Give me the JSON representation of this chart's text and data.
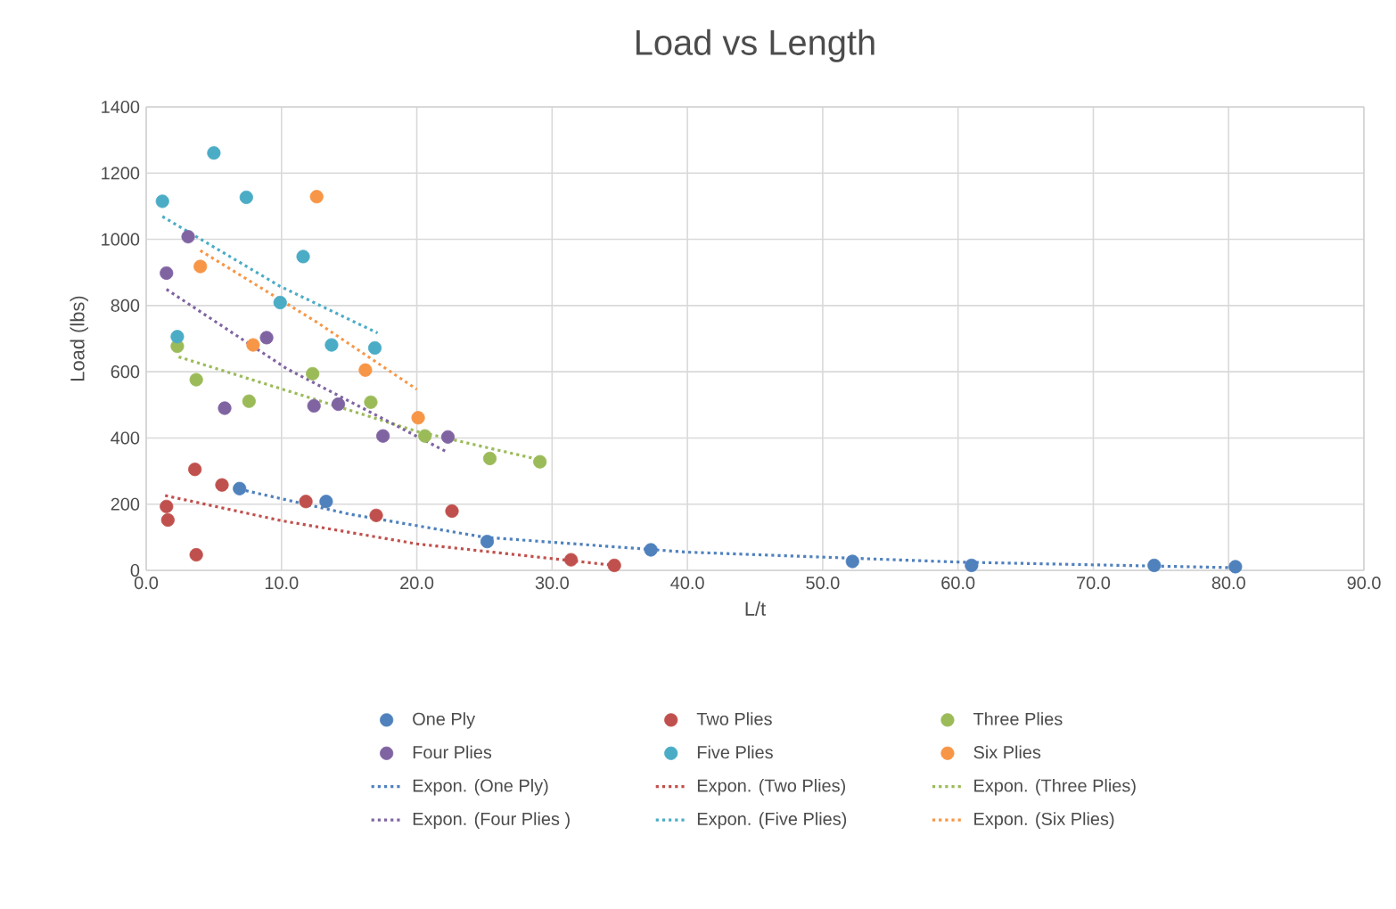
{
  "chart_data": {
    "type": "scatter",
    "title": "Load vs Length",
    "xlabel": "L/t",
    "ylabel": "Load (lbs)",
    "xlim": [
      0,
      90
    ],
    "ylim": [
      0,
      1400
    ],
    "xticks": [
      {
        "value": 0,
        "label": "0.0"
      },
      {
        "value": 10,
        "label": "10.0"
      },
      {
        "value": 20,
        "label": "20.0"
      },
      {
        "value": 30,
        "label": "30.0"
      },
      {
        "value": 40,
        "label": "40.0"
      },
      {
        "value": 50,
        "label": "50.0"
      },
      {
        "value": 60,
        "label": "60.0"
      },
      {
        "value": 70,
        "label": "70.0"
      },
      {
        "value": 80,
        "label": "80.0"
      },
      {
        "value": 90,
        "label": "90.0"
      }
    ],
    "yticks": [
      0,
      200,
      400,
      600,
      800,
      1000,
      1200,
      1400
    ],
    "grid": true,
    "legend": "bottom",
    "marker": "circle",
    "series": [
      {
        "name": "One Ply",
        "color": "#4f81bd",
        "x": [
          6.9,
          13.3,
          25.2,
          37.3,
          52.2,
          61.0,
          74.5,
          80.5
        ],
        "values": [
          247,
          208,
          87,
          62,
          27,
          15,
          15,
          11
        ]
      },
      {
        "name": "Two Plies",
        "color": "#c0504d",
        "x": [
          1.5,
          1.6,
          3.6,
          3.7,
          5.6,
          11.8,
          17.0,
          22.6,
          31.4,
          34.6
        ],
        "values": [
          193,
          152,
          305,
          47,
          258,
          208,
          166,
          179,
          32,
          15
        ]
      },
      {
        "name": "Three Plies",
        "color": "#9bbb59",
        "x": [
          2.3,
          3.7,
          7.6,
          12.3,
          16.6,
          20.6,
          25.4,
          29.1
        ],
        "values": [
          677,
          576,
          511,
          594,
          508,
          406,
          338,
          328
        ]
      },
      {
        "name": "Four Plies",
        "color": "#8064a2",
        "x": [
          1.5,
          3.1,
          5.8,
          8.9,
          12.4,
          14.2,
          17.5,
          22.3
        ],
        "values": [
          898,
          1008,
          490,
          703,
          497,
          502,
          406,
          403
        ]
      },
      {
        "name": "Five Plies",
        "color": "#4bacc6",
        "x": [
          1.2,
          2.3,
          5.0,
          7.4,
          9.9,
          11.6,
          13.7,
          16.9
        ],
        "values": [
          1115,
          706,
          1261,
          1127,
          809,
          948,
          681,
          672
        ]
      },
      {
        "name": "Six Plies",
        "color": "#f79646",
        "x": [
          4.0,
          7.9,
          12.6,
          16.2,
          20.1
        ],
        "values": [
          918,
          681,
          1129,
          605,
          461
        ]
      },
      {
        "name": "Expon. (One Ply)",
        "type": "line",
        "marker": "none",
        "line_style": "dotted",
        "color": "#4f81bd",
        "x": [
          6.9,
          15,
          25,
          40,
          60,
          80.5
        ],
        "values": [
          245,
          170,
          100,
          55,
          25,
          8
        ]
      },
      {
        "name": "Expon. (Two Plies)",
        "type": "line",
        "marker": "none",
        "line_style": "dotted",
        "color": "#c0504d",
        "x": [
          1.4,
          10,
          20,
          34.6
        ],
        "values": [
          226,
          150,
          80,
          15
        ]
      },
      {
        "name": "Expon. (Three Plies)",
        "type": "line",
        "marker": "none",
        "line_style": "dotted",
        "color": "#9bbb59",
        "x": [
          2.4,
          12.6,
          20,
          29.1
        ],
        "values": [
          645,
          515,
          420,
          334
        ]
      },
      {
        "name": "Expon. (Four Plies )",
        "type": "line",
        "marker": "none",
        "line_style": "dotted",
        "color": "#8064a2",
        "x": [
          1.5,
          10.4,
          22.3
        ],
        "values": [
          849,
          609,
          356
        ]
      },
      {
        "name": "Expon. (Five Plies)",
        "type": "line",
        "marker": "none",
        "line_style": "dotted",
        "color": "#4bacc6",
        "x": [
          1.2,
          9.9,
          17.1
        ],
        "values": [
          1069,
          858,
          717
        ]
      },
      {
        "name": "Expon. (Six Plies)",
        "type": "line",
        "marker": "none",
        "line_style": "dotted",
        "color": "#f79646",
        "x": [
          4.0,
          12.6,
          20.0
        ],
        "values": [
          966,
          750,
          547
        ]
      }
    ]
  }
}
